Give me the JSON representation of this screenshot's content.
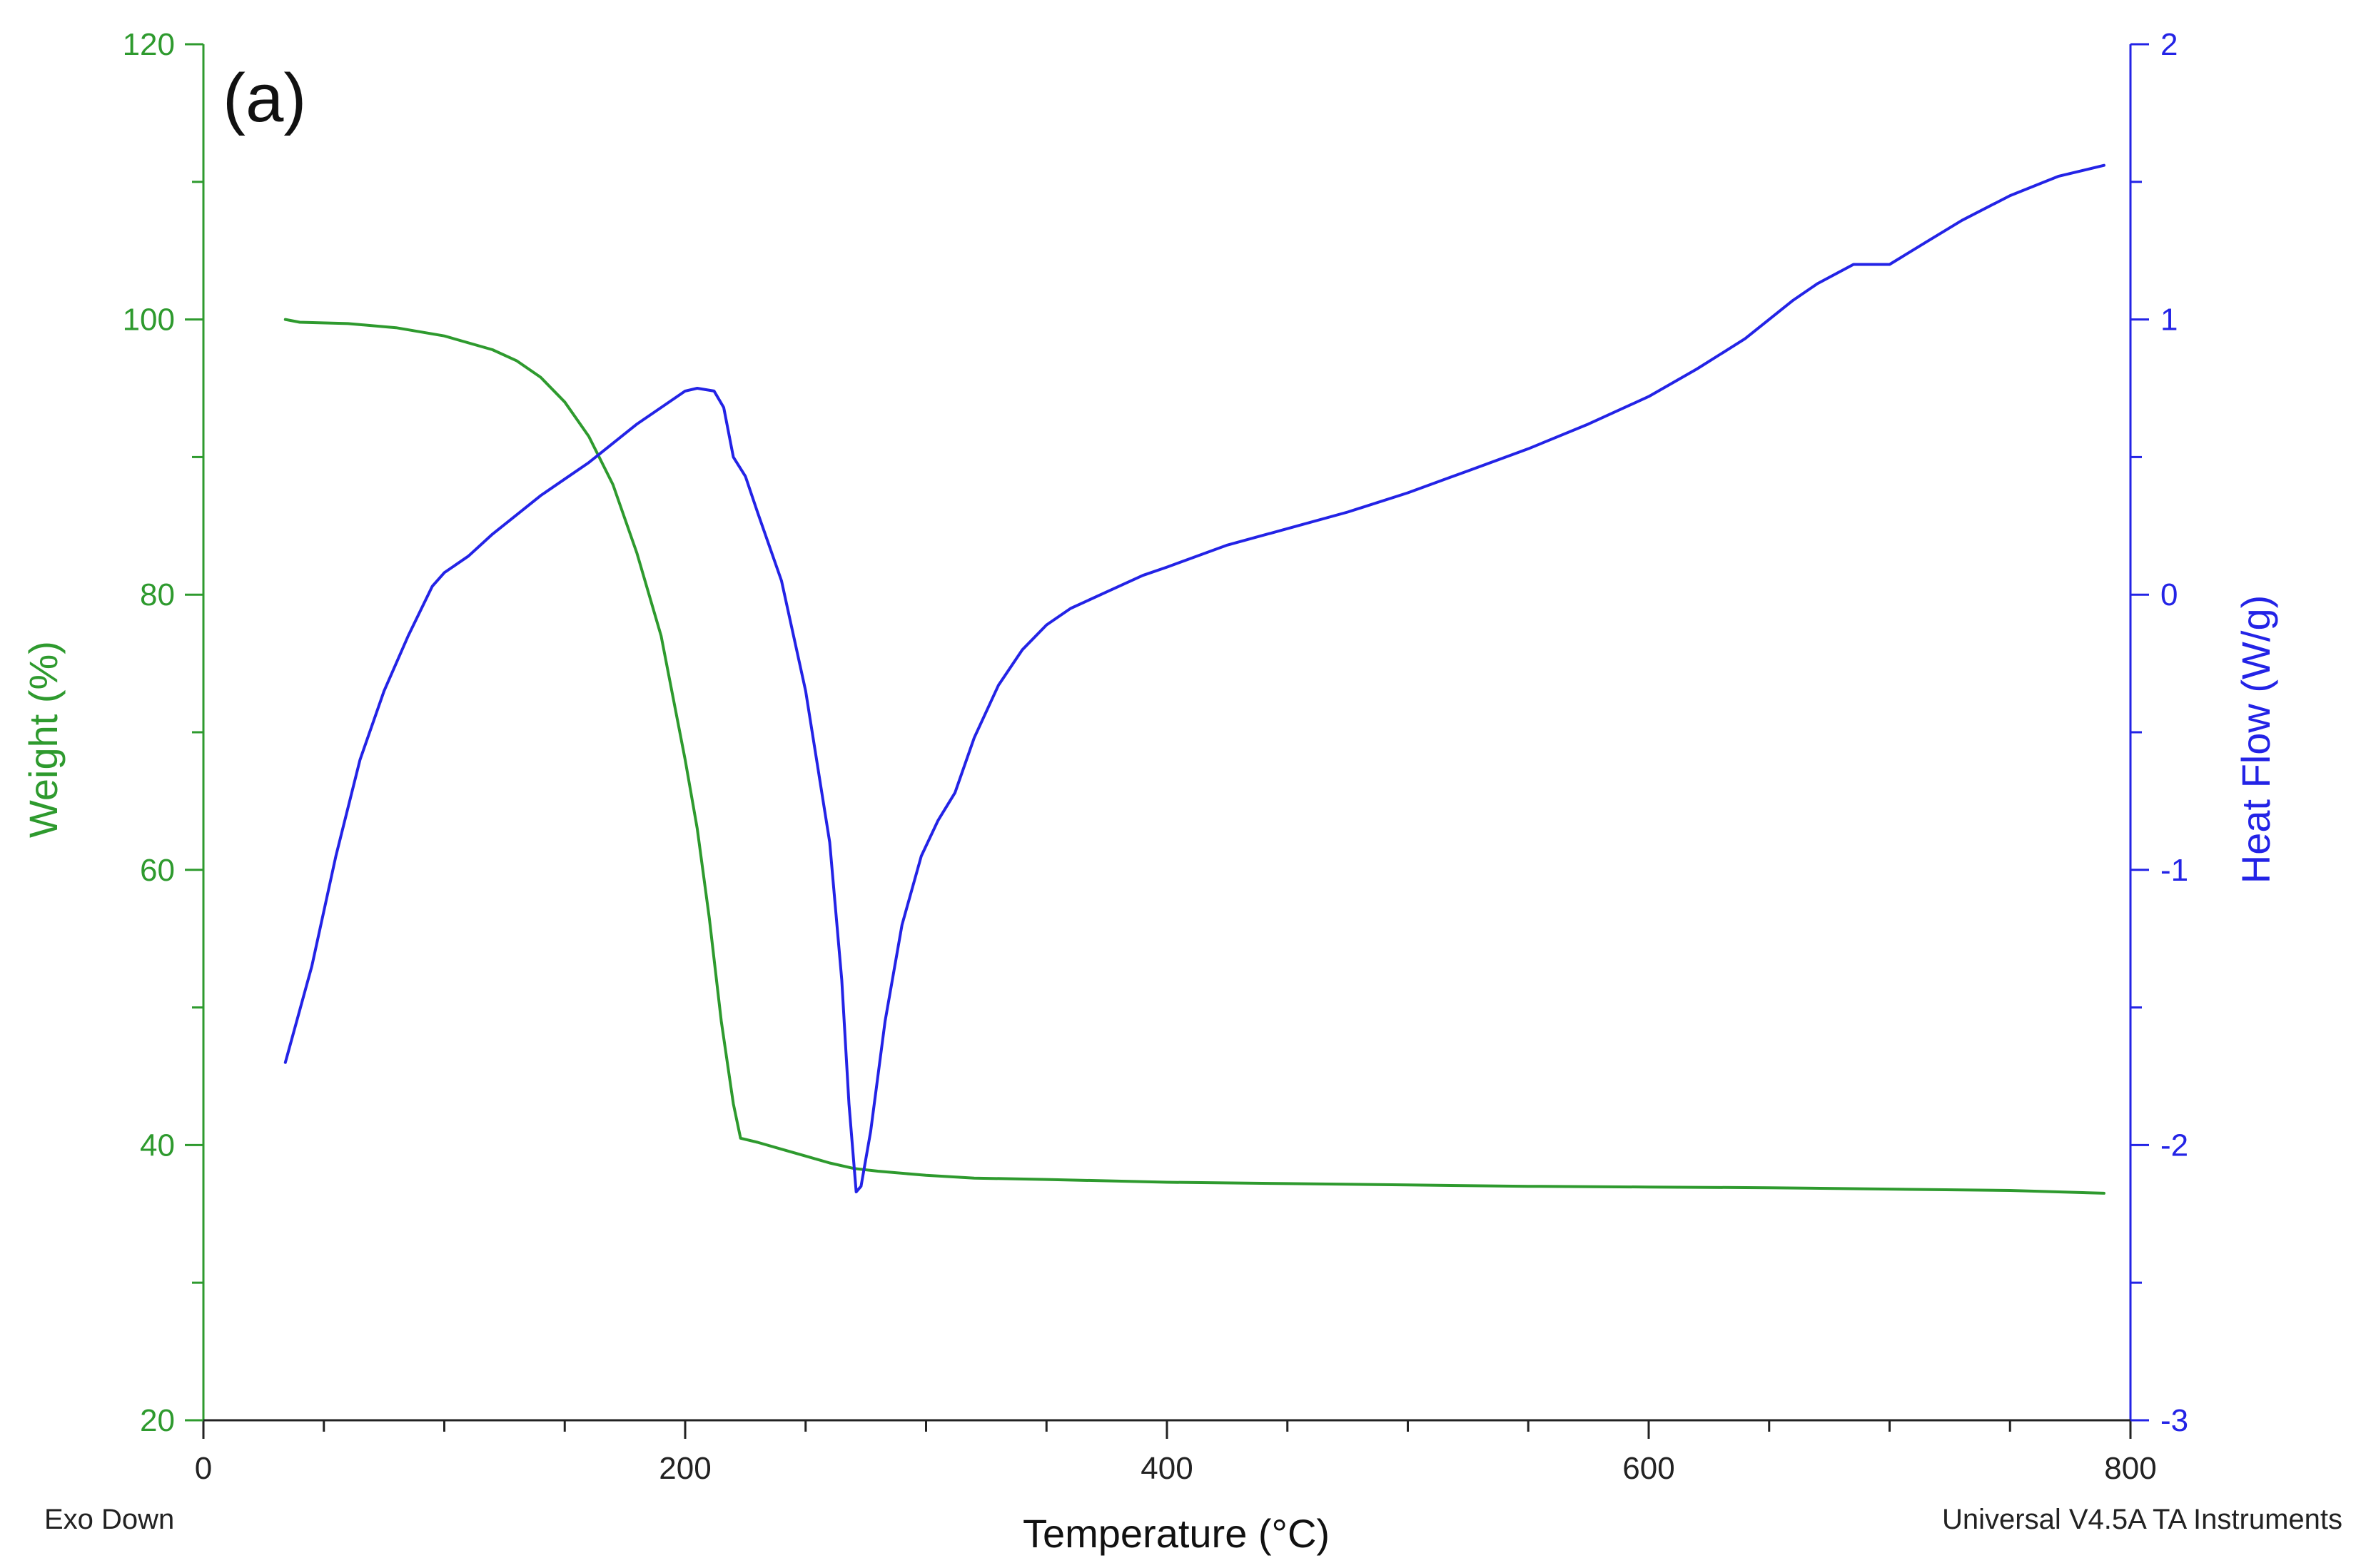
{
  "chart_data": {
    "type": "line",
    "panel_label": "(a)",
    "xlabel": "Temperature (°C)",
    "ylabel_left": "Weight (%)",
    "ylabel_right": "Heat Flow (W/g)",
    "footnote_left": "Exo Down",
    "footnote_right": "Universal V4.5A TA Instruments",
    "xlim": [
      0,
      800
    ],
    "ylim_left": [
      20,
      120
    ],
    "ylim_right": [
      -3,
      2
    ],
    "x_ticks": [
      "0",
      "200",
      "400",
      "600",
      "800"
    ],
    "y_left_ticks": [
      "20",
      "40",
      "60",
      "80",
      "100",
      "120"
    ],
    "y_right_ticks": [
      "-3",
      "-2",
      "-1",
      "0",
      "1",
      "2"
    ],
    "grid": false,
    "colors": {
      "weight": "#2e9a2e",
      "heat_flow": "#2323e6",
      "axis": "#222222"
    },
    "series": [
      {
        "axis": "left",
        "color": "#2e9a2e",
        "points": [
          [
            34,
            100
          ],
          [
            40,
            99.8
          ],
          [
            60,
            99.7
          ],
          [
            80,
            99.4
          ],
          [
            100,
            98.8
          ],
          [
            120,
            97.8
          ],
          [
            130,
            97
          ],
          [
            140,
            95.8
          ],
          [
            150,
            94
          ],
          [
            160,
            91.5
          ],
          [
            170,
            88
          ],
          [
            180,
            83
          ],
          [
            190,
            77
          ],
          [
            200,
            68
          ],
          [
            205,
            63
          ],
          [
            210,
            56.5
          ],
          [
            215,
            49
          ],
          [
            220,
            43
          ],
          [
            223,
            40.5
          ],
          [
            230,
            40.2
          ],
          [
            240,
            39.7
          ],
          [
            250,
            39.2
          ],
          [
            260,
            38.7
          ],
          [
            270,
            38.3
          ],
          [
            280,
            38.1
          ],
          [
            300,
            37.8
          ],
          [
            320,
            37.6
          ],
          [
            350,
            37.5
          ],
          [
            400,
            37.3
          ],
          [
            450,
            37.2
          ],
          [
            500,
            37.1
          ],
          [
            550,
            37.0
          ],
          [
            600,
            36.95
          ],
          [
            650,
            36.9
          ],
          [
            700,
            36.8
          ],
          [
            750,
            36.7
          ],
          [
            789,
            36.5
          ]
        ]
      },
      {
        "axis": "right",
        "color": "#2323e6",
        "points": [
          [
            34,
            -1.7
          ],
          [
            45,
            -1.35
          ],
          [
            55,
            -0.95
          ],
          [
            65,
            -0.6
          ],
          [
            75,
            -0.35
          ],
          [
            85,
            -0.15
          ],
          [
            95,
            0.03
          ],
          [
            100,
            0.08
          ],
          [
            110,
            0.14
          ],
          [
            120,
            0.22
          ],
          [
            130,
            0.29
          ],
          [
            140,
            0.36
          ],
          [
            150,
            0.42
          ],
          [
            160,
            0.48
          ],
          [
            170,
            0.55
          ],
          [
            180,
            0.62
          ],
          [
            190,
            0.68
          ],
          [
            200,
            0.74
          ],
          [
            205,
            0.75
          ],
          [
            212,
            0.74
          ],
          [
            216,
            0.68
          ],
          [
            220,
            0.5
          ],
          [
            225,
            0.43
          ],
          [
            230,
            0.3
          ],
          [
            240,
            0.05
          ],
          [
            250,
            -0.35
          ],
          [
            260,
            -0.9
          ],
          [
            265,
            -1.4
          ],
          [
            268,
            -1.85
          ],
          [
            271,
            -2.17
          ],
          [
            273,
            -2.15
          ],
          [
            277,
            -1.95
          ],
          [
            283,
            -1.55
          ],
          [
            290,
            -1.2
          ],
          [
            298,
            -0.95
          ],
          [
            305,
            -0.82
          ],
          [
            312,
            -0.72
          ],
          [
            320,
            -0.52
          ],
          [
            330,
            -0.33
          ],
          [
            340,
            -0.2
          ],
          [
            350,
            -0.11
          ],
          [
            360,
            -0.05
          ],
          [
            375,
            0.01
          ],
          [
            390,
            0.07
          ],
          [
            400,
            0.1
          ],
          [
            425,
            0.18
          ],
          [
            450,
            0.24
          ],
          [
            475,
            0.3
          ],
          [
            500,
            0.37
          ],
          [
            525,
            0.45
          ],
          [
            550,
            0.53
          ],
          [
            575,
            0.62
          ],
          [
            600,
            0.72
          ],
          [
            620,
            0.82
          ],
          [
            640,
            0.93
          ],
          [
            660,
            1.07
          ],
          [
            670,
            1.13
          ],
          [
            685,
            1.2
          ],
          [
            700,
            1.2
          ],
          [
            715,
            1.28
          ],
          [
            730,
            1.36
          ],
          [
            750,
            1.45
          ],
          [
            770,
            1.52
          ],
          [
            789,
            1.56
          ]
        ]
      }
    ]
  }
}
